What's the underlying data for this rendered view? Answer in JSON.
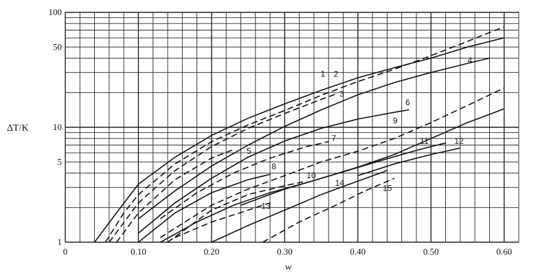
{
  "chart_data": {
    "type": "line",
    "xlabel": "w",
    "ylabel": "ΔT/K",
    "xlim": [
      0,
      0.62
    ],
    "ylim": [
      1,
      100
    ],
    "yscale": "log",
    "grid": true,
    "x_ticks": [
      "0",
      "0.10",
      "0.20",
      "0.30",
      "0.40",
      "0.50",
      "0.60"
    ],
    "y_ticks": [
      "1",
      "5",
      "10",
      "50",
      "100"
    ],
    "series": [
      {
        "name": "1",
        "style": "solid",
        "points": [
          [
            0.04,
            1
          ],
          [
            0.07,
            1.8
          ],
          [
            0.1,
            3.2
          ],
          [
            0.15,
            5.5
          ],
          [
            0.2,
            8.5
          ],
          [
            0.25,
            12
          ],
          [
            0.3,
            16
          ],
          [
            0.35,
            21
          ],
          [
            0.4,
            27
          ],
          [
            0.45,
            33
          ],
          [
            0.5,
            40
          ],
          [
            0.55,
            50
          ],
          [
            0.6,
            60
          ]
        ]
      },
      {
        "name": "2",
        "style": "dashed",
        "points": [
          [
            0.055,
            1
          ],
          [
            0.08,
            1.8
          ],
          [
            0.1,
            2.6
          ],
          [
            0.15,
            4.8
          ],
          [
            0.2,
            7.5
          ],
          [
            0.25,
            10.5
          ],
          [
            0.3,
            14
          ],
          [
            0.35,
            19
          ],
          [
            0.4,
            25
          ],
          [
            0.45,
            32
          ],
          [
            0.5,
            42
          ],
          [
            0.55,
            56
          ],
          [
            0.6,
            75
          ]
        ]
      },
      {
        "name": "3",
        "style": "dashed",
        "points": [
          [
            0.06,
            1
          ],
          [
            0.1,
            2.2
          ],
          [
            0.15,
            4.2
          ],
          [
            0.2,
            6.8
          ],
          [
            0.25,
            9.8
          ],
          [
            0.3,
            13.2
          ],
          [
            0.35,
            17.5
          ],
          [
            0.37,
            19.5
          ]
        ]
      },
      {
        "name": "4",
        "style": "solid",
        "points": [
          [
            0.1,
            1.6
          ],
          [
            0.15,
            2.8
          ],
          [
            0.2,
            4.6
          ],
          [
            0.25,
            7
          ],
          [
            0.3,
            10.2
          ],
          [
            0.35,
            14.2
          ],
          [
            0.4,
            19.2
          ],
          [
            0.45,
            24.5
          ],
          [
            0.5,
            30
          ],
          [
            0.55,
            36
          ],
          [
            0.58,
            40
          ]
        ]
      },
      {
        "name": "5",
        "style": "dashed",
        "points": [
          [
            0.07,
            1
          ],
          [
            0.1,
            1.8
          ],
          [
            0.15,
            3.5
          ],
          [
            0.2,
            5.4
          ],
          [
            0.23,
            6.4
          ]
        ]
      },
      {
        "name": "6",
        "style": "solid",
        "points": [
          [
            0.1,
            1.2
          ],
          [
            0.15,
            2.2
          ],
          [
            0.2,
            3.6
          ],
          [
            0.25,
            5.5
          ],
          [
            0.3,
            7.6
          ],
          [
            0.35,
            9.8
          ],
          [
            0.4,
            11.8
          ],
          [
            0.45,
            13.5
          ],
          [
            0.47,
            14.2
          ]
        ]
      },
      {
        "name": "7",
        "style": "dashed",
        "points": [
          [
            0.13,
            1.6
          ],
          [
            0.18,
            2.7
          ],
          [
            0.23,
            4
          ],
          [
            0.28,
            5.4
          ],
          [
            0.33,
            6.8
          ],
          [
            0.36,
            7.5
          ]
        ]
      },
      {
        "name": "8",
        "style": "solid",
        "points": [
          [
            0.1,
            1
          ],
          [
            0.15,
            1.8
          ],
          [
            0.2,
            2.7
          ],
          [
            0.25,
            3.5
          ],
          [
            0.28,
            3.9
          ]
        ]
      },
      {
        "name": "9",
        "style": "dashed",
        "points": [
          [
            0.13,
            1.1
          ],
          [
            0.2,
            2.1
          ],
          [
            0.25,
            2.9
          ],
          [
            0.3,
            3.8
          ],
          [
            0.35,
            5
          ],
          [
            0.4,
            6.2
          ],
          [
            0.45,
            8
          ],
          [
            0.5,
            11
          ],
          [
            0.55,
            15.5
          ],
          [
            0.6,
            22
          ]
        ]
      },
      {
        "name": "10",
        "style": "dashed",
        "points": [
          [
            0.14,
            1
          ],
          [
            0.2,
            1.9
          ],
          [
            0.25,
            2.6
          ],
          [
            0.3,
            3.1
          ],
          [
            0.33,
            3.4
          ]
        ]
      },
      {
        "name": "11",
        "style": "solid",
        "points": [
          [
            0.13,
            1
          ],
          [
            0.18,
            1.5
          ],
          [
            0.23,
            2.1
          ],
          [
            0.28,
            2.7
          ],
          [
            0.33,
            3.3
          ],
          [
            0.38,
            4.1
          ],
          [
            0.43,
            5.1
          ],
          [
            0.48,
            6.3
          ],
          [
            0.52,
            7.3
          ]
        ]
      },
      {
        "name": "12",
        "style": "solid",
        "points": [
          [
            0.24,
            2.1
          ],
          [
            0.3,
            2.9
          ],
          [
            0.35,
            3.6
          ],
          [
            0.4,
            4.5
          ],
          [
            0.45,
            5.8
          ],
          [
            0.5,
            8
          ],
          [
            0.55,
            11
          ],
          [
            0.6,
            14.5
          ]
        ]
      },
      {
        "name": "13",
        "style": "dashed",
        "points": [
          [
            0.15,
            1.1
          ],
          [
            0.2,
            1.5
          ],
          [
            0.25,
            1.9
          ],
          [
            0.28,
            2.2
          ]
        ]
      },
      {
        "name": "14",
        "style": "solid",
        "points": [
          [
            0.2,
            1
          ],
          [
            0.25,
            1.4
          ],
          [
            0.3,
            1.9
          ],
          [
            0.35,
            2.6
          ],
          [
            0.4,
            3.4
          ],
          [
            0.44,
            4.2
          ]
        ]
      },
      {
        "name": "15",
        "style": "dashed",
        "points": [
          [
            0.27,
            1
          ],
          [
            0.32,
            1.5
          ],
          [
            0.37,
            2.1
          ],
          [
            0.41,
            2.8
          ],
          [
            0.45,
            3.6
          ]
        ]
      },
      {
        "name": "",
        "style": "solid",
        "points": [
          [
            0.4,
            3.8
          ],
          [
            0.45,
            4.8
          ],
          [
            0.5,
            5.8
          ],
          [
            0.54,
            6.6
          ]
        ]
      }
    ]
  }
}
